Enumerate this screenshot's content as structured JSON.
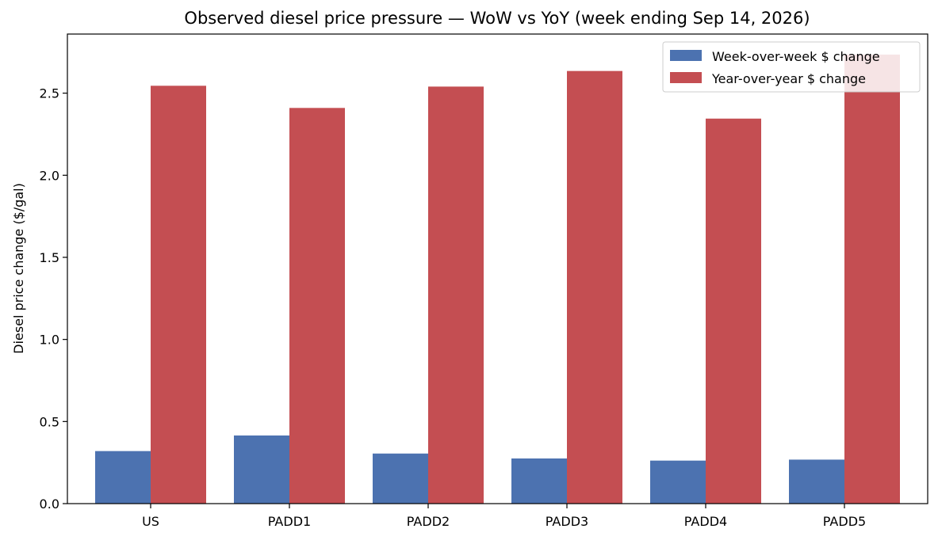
{
  "chart_data": {
    "type": "bar",
    "title": "Observed diesel price pressure — WoW vs YoY (week ending Sep 14, 2026)",
    "xlabel": "",
    "ylabel": "Diesel price change ($/gal)",
    "categories": [
      "US",
      "PADD1",
      "PADD2",
      "PADD3",
      "PADD4",
      "PADD5"
    ],
    "series": [
      {
        "name": "Week-over-week $ change",
        "color": "#4c72b0",
        "values": [
          0.32,
          0.415,
          0.305,
          0.275,
          0.262,
          0.268
        ]
      },
      {
        "name": "Year-over-year $ change",
        "color": "#c44e52",
        "values": [
          2.545,
          2.41,
          2.54,
          2.635,
          2.345,
          2.735
        ]
      }
    ],
    "ylim": [
      0,
      2.86
    ],
    "yticks": [
      0.0,
      0.5,
      1.0,
      1.5,
      2.0,
      2.5
    ],
    "ytick_labels": [
      "0.0",
      "0.5",
      "1.0",
      "1.5",
      "2.0",
      "2.5"
    ],
    "grid": false,
    "legend_position": "top-right"
  }
}
